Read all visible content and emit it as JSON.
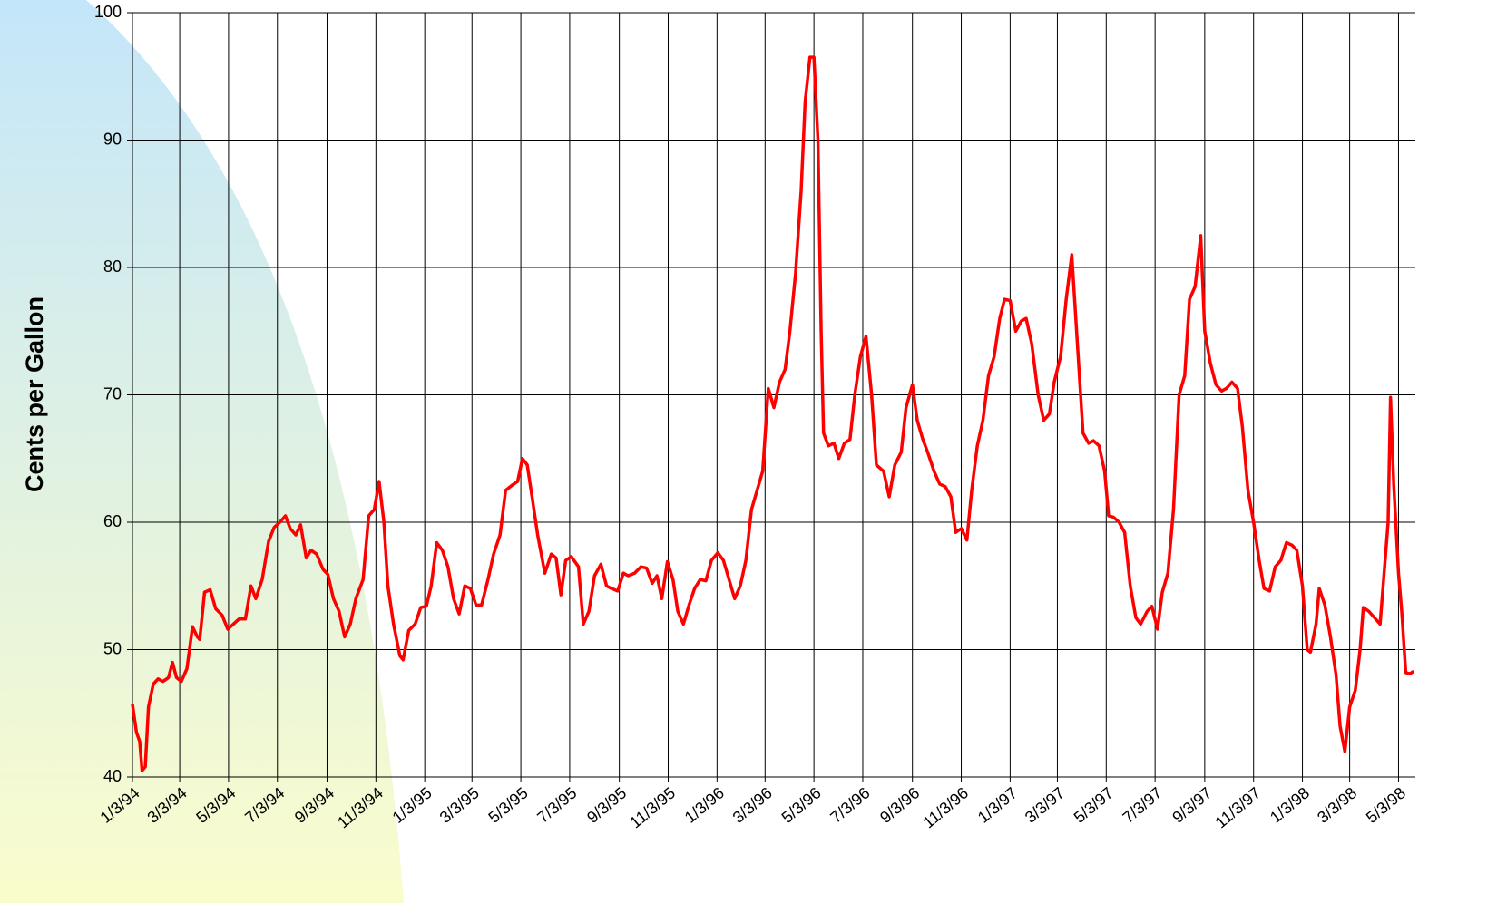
{
  "chart_data": {
    "type": "line",
    "ylabel": "Cents per Gallon",
    "color": "#ff0000",
    "ylim": [
      40,
      100
    ],
    "yticks": [
      40,
      50,
      60,
      70,
      80,
      90,
      100
    ],
    "xlim": [
      "1/3/94",
      "5/24/98"
    ],
    "xticks": [
      "1/3/94",
      "3/3/94",
      "5/3/94",
      "7/3/94",
      "9/3/94",
      "11/3/94",
      "1/3/95",
      "3/3/95",
      "5/3/95",
      "7/3/95",
      "9/3/95",
      "11/3/95",
      "1/3/96",
      "3/3/96",
      "5/3/96",
      "7/3/96",
      "9/3/96",
      "11/3/96",
      "1/3/97",
      "3/3/97",
      "5/3/97",
      "7/3/97",
      "9/3/97",
      "11/3/97",
      "1/3/98",
      "3/3/98",
      "5/3/98"
    ],
    "grid": true,
    "x": [
      "1/3/94",
      "1/8/94",
      "1/12/94",
      "1/15/94",
      "1/19/94",
      "1/23/94",
      "1/29/94",
      "2/4/94",
      "2/10/94",
      "2/17/94",
      "2/22/94",
      "2/27/94",
      "3/5/94",
      "3/12/94",
      "3/19/94",
      "3/25/94",
      "3/28/94",
      "4/3/94",
      "4/10/94",
      "4/17/94",
      "4/25/94",
      "5/2/94",
      "5/9/94",
      "5/16/94",
      "5/24/94",
      "5/31/94",
      "6/6/94",
      "6/14/94",
      "6/22/94",
      "6/29/94",
      "7/6/94",
      "7/13/94",
      "7/19/94",
      "7/26/94",
      "8/1/94",
      "8/8/94",
      "8/14/94",
      "8/21/94",
      "8/29/94",
      "9/4/94",
      "9/11/94",
      "9/18/94",
      "9/25/94",
      "10/2/94",
      "10/9/94",
      "10/18/94",
      "10/25/94",
      "11/1/94",
      "11/7/94",
      "11/13/94",
      "11/18/94",
      "11/25/94",
      "12/3/94",
      "12/7/94",
      "12/14/94",
      "12/22/94",
      "12/29/94",
      "1/5/95",
      "1/11/95",
      "1/18/95",
      "1/25/95",
      "2/1/95",
      "2/8/95",
      "2/15/95",
      "2/22/95",
      "3/1/95",
      "3/8/95",
      "3/15/95",
      "3/23/95",
      "3/30/95",
      "4/7/95",
      "4/14/95",
      "4/22/95",
      "4/29/95",
      "5/5/95",
      "5/11/95",
      "5/17/95",
      "5/24/95",
      "6/2/95",
      "6/10/95",
      "6/16/95",
      "6/22/95",
      "6/28/95",
      "7/5/95",
      "7/14/95",
      "7/20/95",
      "7/27/95",
      "8/3/95",
      "8/11/95",
      "8/18/95",
      "8/24/95",
      "9/1/95",
      "9/8/95",
      "9/14/95",
      "9/22/95",
      "9/30/95",
      "10/7/95",
      "10/14/95",
      "10/20/95",
      "10/26/95",
      "11/2/95",
      "11/9/95",
      "11/15/95",
      "11/22/95",
      "11/29/95",
      "12/6/95",
      "12/13/95",
      "12/20/95",
      "12/27/95",
      "1/4/96",
      "1/11/96",
      "1/18/96",
      "1/25/96",
      "2/1/96",
      "2/8/96",
      "2/15/96",
      "2/22/96",
      "2/29/96",
      "3/7/96",
      "3/14/96",
      "3/21/96",
      "3/28/96",
      "4/3/96",
      "4/10/96",
      "4/17/96",
      "4/22/96",
      "4/28/96",
      "5/3/96",
      "5/8/96",
      "5/12/96",
      "5/15/96",
      "5/21/96",
      "5/28/96",
      "6/3/96",
      "6/10/96",
      "6/17/96",
      "6/23/96",
      "6/30/96",
      "7/7/96",
      "7/14/96",
      "7/20/96",
      "7/29/96",
      "8/5/96",
      "8/12/96",
      "8/20/96",
      "8/26/96",
      "9/3/96",
      "9/9/96",
      "9/16/96",
      "9/22/96",
      "9/30/96",
      "10/7/96",
      "10/14/96",
      "10/21/96",
      "10/27/96",
      "11/3/96",
      "11/10/96",
      "11/16/96",
      "11/23/96",
      "11/30/96",
      "12/7/96",
      "12/14/96",
      "12/21/96",
      "12/27/96",
      "1/3/97",
      "1/10/97",
      "1/17/97",
      "1/23/97",
      "1/30/97",
      "2/7/97",
      "2/14/97",
      "2/21/97",
      "2/27/97",
      "3/7/97",
      "3/14/97",
      "3/21/97",
      "3/28/97",
      "4/4/97",
      "4/11/97",
      "4/17/97",
      "4/24/97",
      "5/1/97",
      "5/6/97",
      "5/12/97",
      "5/19/97",
      "5/26/97",
      "6/2/97",
      "6/9/97",
      "6/15/97",
      "6/23/97",
      "6/29/97",
      "7/6/97",
      "7/12/97",
      "7/19/97",
      "7/26/97",
      "8/2/97",
      "8/9/97",
      "8/15/97",
      "8/22/97",
      "8/29/97",
      "9/3/97",
      "9/10/97",
      "9/17/97",
      "9/24/97",
      "9/30/97",
      "10/7/97",
      "10/14/97",
      "10/20/97",
      "10/27/97",
      "11/3/97",
      "11/10/97",
      "11/16/97",
      "11/23/97",
      "11/30/97",
      "12/7/97",
      "12/14/97",
      "12/21/97",
      "12/27/97",
      "1/3/98",
      "1/9/98",
      "1/13/98",
      "1/20/98",
      "1/24/98",
      "1/31/98",
      "2/7/98",
      "2/14/98",
      "2/19/98",
      "2/25/98",
      "3/3/98",
      "3/10/98",
      "3/16/98",
      "3/20/98",
      "3/27/98",
      "4/3/98",
      "4/10/98",
      "4/15/98",
      "4/20/98",
      "4/23/98",
      "4/27/98",
      "5/3/98",
      "5/7/98",
      "5/12/98",
      "5/17/98",
      "5/22/98"
    ],
    "values": [
      45.7,
      43.5,
      42.8,
      40.5,
      40.8,
      45.5,
      47.3,
      47.7,
      47.5,
      47.8,
      49,
      47.8,
      47.5,
      48.5,
      51.8,
      51,
      50.8,
      54.5,
      54.7,
      53.2,
      52.7,
      51.6,
      52,
      52.4,
      52.4,
      55,
      54,
      55.5,
      58.5,
      59.6,
      60,
      60.5,
      59.5,
      59,
      59.8,
      57.2,
      57.8,
      57.5,
      56.3,
      55.9,
      54,
      53,
      51,
      52,
      54,
      55.5,
      60.5,
      61,
      63.2,
      60,
      55,
      52,
      49.5,
      49.2,
      51.5,
      52,
      53.3,
      53.4,
      55,
      58.4,
      57.8,
      56.5,
      54,
      52.8,
      55,
      54.8,
      53.5,
      53.5,
      55.5,
      57.5,
      59,
      62.5,
      62.9,
      63.2,
      65,
      64.5,
      62,
      59,
      56,
      57.5,
      57.2,
      54.3,
      57,
      57.3,
      56.5,
      52,
      53,
      55.8,
      56.7,
      55,
      54.8,
      54.6,
      56,
      55.8,
      56,
      56.5,
      56.4,
      55.2,
      55.8,
      54,
      56.9,
      55.5,
      53,
      52,
      53.5,
      54.8,
      55.5,
      55.4,
      57,
      57.6,
      57,
      55.5,
      54,
      55,
      57,
      61,
      62.5,
      64,
      70.5,
      69,
      71,
      72,
      75,
      79.5,
      86,
      93,
      96.5,
      96.5,
      90,
      75,
      67,
      66,
      66.2,
      65,
      66.2,
      66.5,
      70,
      73,
      74.6,
      70,
      64.5,
      64,
      62,
      64.5,
      65.5,
      69,
      70.8,
      68,
      66.5,
      65.5,
      64,
      63,
      62.8,
      62,
      59.2,
      59.5,
      58.6,
      62.5,
      66,
      68,
      71.5,
      73,
      76,
      77.5,
      77.4,
      75,
      75.8,
      76,
      74,
      70,
      68,
      68.5,
      71,
      73,
      77.5,
      81,
      74,
      67,
      66.2,
      66.4,
      66,
      64,
      60.5,
      60.4,
      60,
      59.2,
      55,
      52.5,
      52,
      53,
      53.4,
      51.6,
      54.5,
      56,
      61,
      70,
      71.5,
      77.5,
      78.5,
      82.5,
      75,
      72.5,
      70.8,
      70.3,
      70.5,
      71,
      70.5,
      67.5,
      62.5,
      60,
      57,
      54.8,
      54.6,
      56.5,
      57,
      58.4,
      58.2,
      57.8,
      55,
      50,
      49.8,
      52,
      54.8,
      53.5,
      51,
      48,
      44,
      42,
      45.5,
      46.8,
      50,
      53.3,
      53,
      52.5,
      52,
      56,
      60,
      69.8,
      63,
      56,
      53,
      48.2,
      48.1,
      48.3
    ]
  }
}
